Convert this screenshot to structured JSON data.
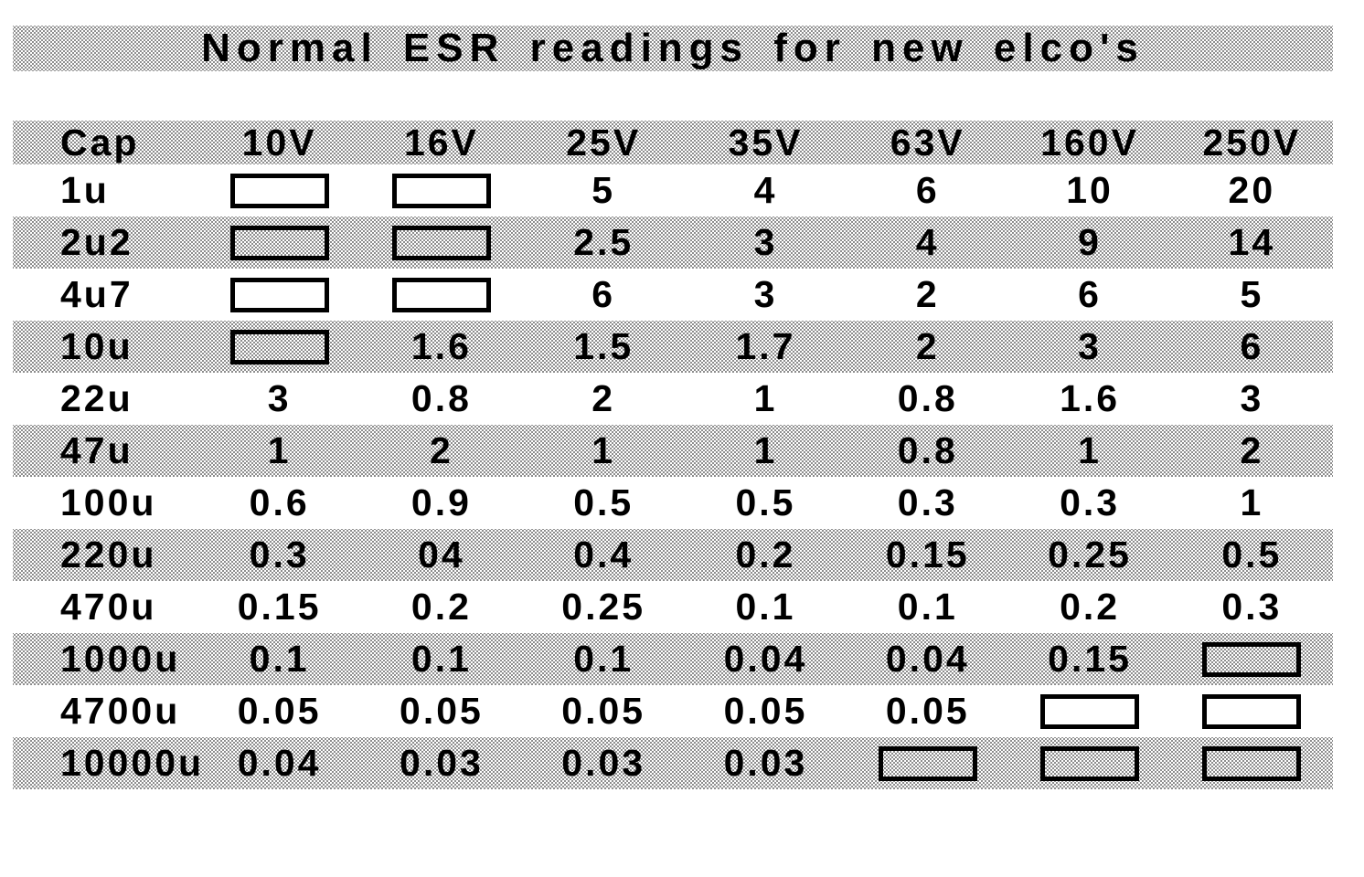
{
  "title": "Normal ESR readings for new elco's",
  "colors": {
    "text": "#000000",
    "background": "#ffffff",
    "band_dot": "#000000"
  },
  "table": {
    "columns": [
      "Cap",
      "10V",
      "16V",
      "25V",
      "35V",
      "63V",
      "160V",
      "250V"
    ],
    "rows": [
      {
        "cap": "1u",
        "values": [
          null,
          null,
          "5",
          "4",
          "6",
          "10",
          "20"
        ]
      },
      {
        "cap": "2u2",
        "values": [
          null,
          null,
          "2.5",
          "3",
          "4",
          "9",
          "14"
        ]
      },
      {
        "cap": "4u7",
        "values": [
          null,
          null,
          "6",
          "3",
          "2",
          "6",
          "5"
        ]
      },
      {
        "cap": "10u",
        "values": [
          null,
          "1.6",
          "1.5",
          "1.7",
          "2",
          "3",
          "6"
        ]
      },
      {
        "cap": "22u",
        "values": [
          "3",
          "0.8",
          "2",
          "1",
          "0.8",
          "1.6",
          "3"
        ]
      },
      {
        "cap": "47u",
        "values": [
          "1",
          "2",
          "1",
          "1",
          "0.8",
          "1",
          "2"
        ]
      },
      {
        "cap": "100u",
        "values": [
          "0.6",
          "0.9",
          "0.5",
          "0.5",
          "0.3",
          "0.3",
          "1"
        ]
      },
      {
        "cap": "220u",
        "values": [
          "0.3",
          "04",
          "0.4",
          "0.2",
          "0.15",
          "0.25",
          "0.5"
        ]
      },
      {
        "cap": "470u",
        "values": [
          "0.15",
          "0.2",
          "0.25",
          "0.1",
          "0.1",
          "0.2",
          "0.3"
        ]
      },
      {
        "cap": "1000u",
        "values": [
          "0.1",
          "0.1",
          "0.1",
          "0.04",
          "0.04",
          "0.15",
          null
        ]
      },
      {
        "cap": "4700u",
        "values": [
          "0.05",
          "0.05",
          "0.05",
          "0.05",
          "0.05",
          null,
          null
        ]
      },
      {
        "cap": "10000u",
        "values": [
          "0.04",
          "0.03",
          "0.03",
          "0.03",
          null,
          null,
          null
        ]
      }
    ]
  }
}
